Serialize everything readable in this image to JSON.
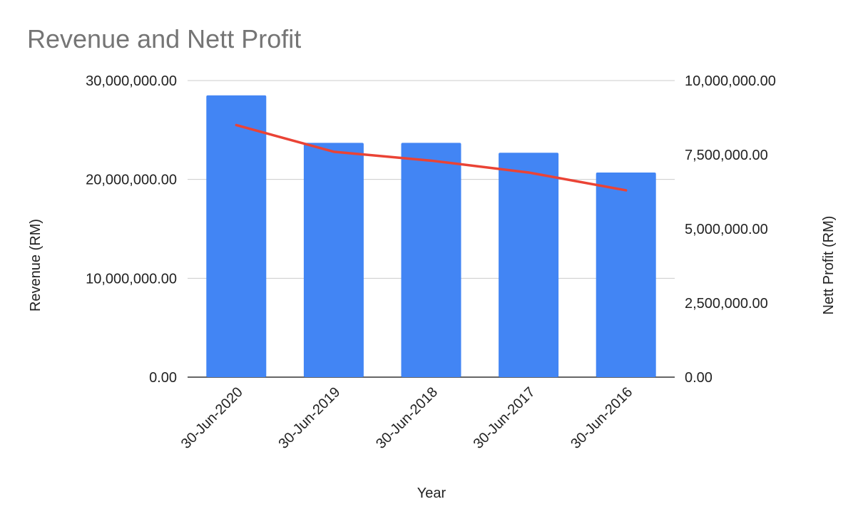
{
  "chart_data": {
    "type": "bar",
    "title": "Revenue and Nett Profit",
    "xlabel": "Year",
    "ylabel": "Revenue (RM)",
    "ylabel_right": "Nett Profit (RM)",
    "categories": [
      "30-Jun-2020",
      "30-Jun-2019",
      "30-Jun-2018",
      "30-Jun-2017",
      "30-Jun-2016"
    ],
    "series": [
      {
        "name": "Revenue (RM)",
        "type": "bar",
        "axis": "left",
        "color": "#4285f4",
        "values": [
          28500000,
          23700000,
          23700000,
          22700000,
          20700000
        ]
      },
      {
        "name": "Nett Profit (RM)",
        "type": "line",
        "axis": "right",
        "color": "#ea4335",
        "values": [
          8500000,
          7600000,
          7300000,
          6900000,
          6300000
        ]
      }
    ],
    "ylim": [
      0,
      30000000
    ],
    "ylim_right": [
      0,
      10000000
    ],
    "yticks": [
      "0.00",
      "10,000,000.00",
      "20,000,000.00",
      "30,000,000.00"
    ],
    "yticks_right": [
      "0.00",
      "2,500,000.00",
      "5,000,000.00",
      "7,500,000.00",
      "10,000,000.00"
    ],
    "grid": true,
    "legend": "none"
  }
}
